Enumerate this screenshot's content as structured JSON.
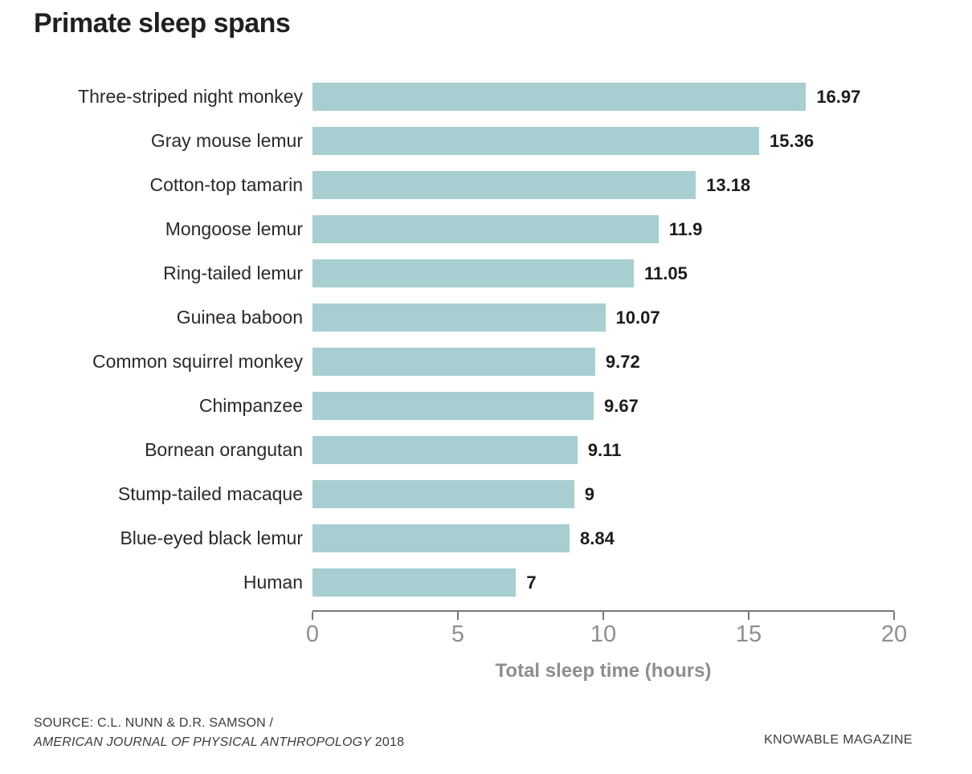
{
  "title": "Primate sleep spans",
  "chart_data": {
    "type": "bar",
    "orientation": "horizontal",
    "title": "Primate sleep spans",
    "categories": [
      "Three-striped night monkey",
      "Gray mouse lemur",
      "Cotton-top tamarin",
      "Mongoose lemur",
      "Ring-tailed lemur",
      "Guinea baboon",
      "Common squirrel monkey",
      "Chimpanzee",
      "Bornean orangutan",
      "Stump-tailed macaque",
      "Blue-eyed black lemur",
      "Human"
    ],
    "values": [
      16.97,
      15.36,
      13.18,
      11.9,
      11.05,
      10.07,
      9.72,
      9.67,
      9.11,
      9,
      8.84,
      7
    ],
    "value_labels": [
      "16.97",
      "15.36",
      "13.18",
      "11.9",
      "11.05",
      "10.07",
      "9.72",
      "9.67",
      "9.11",
      "9",
      "8.84",
      "7"
    ],
    "xlabel": "Total sleep time (hours)",
    "xlim": [
      0,
      20
    ],
    "x_ticks": [
      "0",
      "5",
      "10",
      "15",
      "20"
    ],
    "x_tick_values": [
      0,
      5,
      10,
      15,
      20
    ],
    "grid": false,
    "legend": false,
    "bar_color": "#a7ced1",
    "axis_color": "#777777",
    "tick_label_color": "#8f8f8f",
    "title_color": "#231f20"
  },
  "footer": {
    "source_line1": "SOURCE: C.L. NUNN & D.R. SAMSON /",
    "source_line2_italic": "AMERICAN JOURNAL OF PHYSICAL ANTHROPOLOGY",
    "source_line2_year": " 2018",
    "brand": "KNOWABLE MAGAZINE"
  }
}
